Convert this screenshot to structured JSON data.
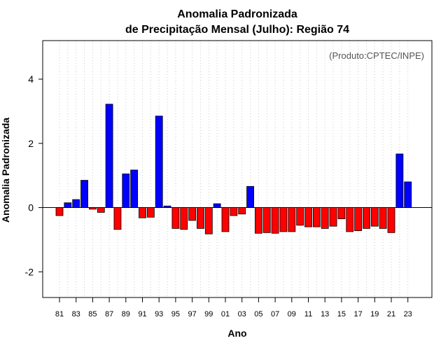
{
  "chart_data": {
    "type": "bar",
    "title": "Anomalia Padronizada",
    "subtitle": "de Precipitação Mensal (Julho): Região 74",
    "xlabel": "Ano",
    "ylabel": "Anomalia Padronizada",
    "annotation": "(Produto:CPTEC/INPE)",
    "ylim": [
      -2.8,
      5.2
    ],
    "yticks": [
      -2,
      0,
      2,
      4
    ],
    "grid": "vertical dotted",
    "positive_color": "#0000ff",
    "negative_color": "#ff0000",
    "categories": [
      "1981",
      "1982",
      "1983",
      "1984",
      "1985",
      "1986",
      "1987",
      "1988",
      "1989",
      "1990",
      "1991",
      "1992",
      "1993",
      "1994",
      "1995",
      "1996",
      "1997",
      "1998",
      "1999",
      "2000",
      "2001",
      "2002",
      "2003",
      "2004",
      "2005",
      "2006",
      "2007",
      "2008",
      "2009",
      "2010",
      "2011",
      "2012",
      "2013",
      "2014",
      "2015",
      "2016",
      "2017",
      "2018",
      "2019",
      "2020",
      "2021",
      "2022",
      "2023"
    ],
    "tick_labels": [
      "81",
      "83",
      "85",
      "87",
      "89",
      "91",
      "93",
      "95",
      "97",
      "99",
      "01",
      "03",
      "05",
      "07",
      "09",
      "11",
      "13",
      "15",
      "17",
      "19",
      "21",
      "23"
    ],
    "values": [
      -0.25,
      0.15,
      0.25,
      0.85,
      -0.05,
      -0.15,
      3.22,
      -0.68,
      1.05,
      1.17,
      -0.32,
      -0.3,
      2.85,
      0.05,
      -0.65,
      -0.68,
      -0.4,
      -0.65,
      -0.82,
      0.12,
      -0.75,
      -0.25,
      -0.2,
      0.66,
      -0.8,
      -0.78,
      -0.8,
      -0.75,
      -0.75,
      -0.55,
      -0.6,
      -0.6,
      -0.65,
      -0.58,
      -0.35,
      -0.75,
      -0.72,
      -0.65,
      -0.58,
      -0.65,
      -0.78,
      1.67,
      0.8
    ]
  }
}
